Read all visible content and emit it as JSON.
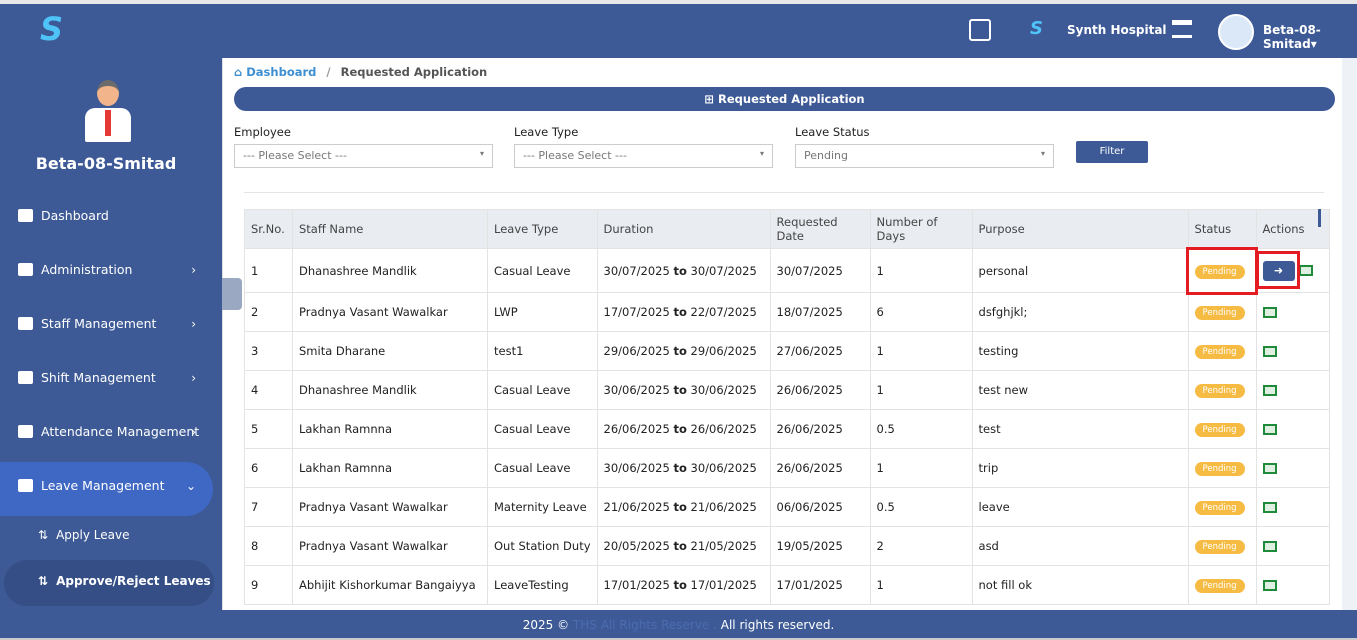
{
  "header": {
    "hospital": "Synth Hospital",
    "user": "Beta-08-Smitad"
  },
  "sidebar": {
    "user_name": "Beta-08-Smitad",
    "menu": [
      "Dashboard",
      "Administration",
      "Staff Management",
      "Shift Management",
      "Attendance Management",
      "Leave Management"
    ],
    "submenu": [
      "Apply Leave",
      "Approve/Reject Leaves"
    ]
  },
  "breadcrumb": [
    "Dashboard",
    "Requested Application"
  ],
  "panel_title": "Requested Application",
  "filters": [
    {
      "label": "Employee",
      "value": "--- Please Select ---"
    },
    {
      "label": "Leave Type",
      "value": "--- Please Select ---"
    },
    {
      "label": "Leave Status",
      "value": "Pending"
    }
  ],
  "filter_button": "Filter",
  "table": {
    "columns": [
      "Sr.No.",
      "Staff Name",
      "Leave Type",
      "Duration",
      "Requested Date",
      "Number of Days",
      "Purpose",
      "Status",
      "Actions"
    ],
    "duration_separator": "to",
    "rows": [
      [
        1,
        "Dhanashree Mandlik",
        "Casual Leave",
        "30/07/2025",
        "30/07/2025",
        "30/07/2025",
        1,
        "personal",
        "Pending"
      ],
      [
        2,
        "Pradnya Vasant Wawalkar",
        "LWP",
        "17/07/2025",
        "22/07/2025",
        "18/07/2025",
        6,
        "dsfghjkl;",
        "Pending"
      ],
      [
        3,
        "Smita Dharane",
        "test1",
        "29/06/2025",
        "29/06/2025",
        "27/06/2025",
        1,
        "testing",
        "Pending"
      ],
      [
        4,
        "Dhanashree Mandlik",
        "Casual Leave",
        "30/06/2025",
        "30/06/2025",
        "26/06/2025",
        1,
        "test new",
        "Pending"
      ],
      [
        5,
        "Lakhan Ramnna",
        "Casual Leave",
        "26/06/2025",
        "26/06/2025",
        "26/06/2025",
        0.5,
        "test",
        "Pending"
      ],
      [
        6,
        "Lakhan Ramnna",
        "Casual Leave",
        "30/06/2025",
        "30/06/2025",
        "26/06/2025",
        1,
        "trip",
        "Pending"
      ],
      [
        7,
        "Pradnya Vasant Wawalkar",
        "Maternity Leave",
        "21/06/2025",
        "21/06/2025",
        "06/06/2025",
        0.5,
        "leave",
        "Pending"
      ],
      [
        8,
        "Pradnya Vasant Wawalkar",
        "Out Station Duty",
        "20/05/2025",
        "21/05/2025",
        "19/05/2025",
        2,
        "asd",
        "Pending"
      ],
      [
        9,
        "Abhijit Kishorkumar Bangaiyya",
        "LeaveTesting",
        "17/01/2025",
        "17/01/2025",
        "17/01/2025",
        1,
        "not fill ok",
        "Pending"
      ]
    ]
  },
  "footer": {
    "copyright": "2025 ©",
    "brand": "THS All Rights Reserve .",
    "rights": "All rights reserved."
  }
}
